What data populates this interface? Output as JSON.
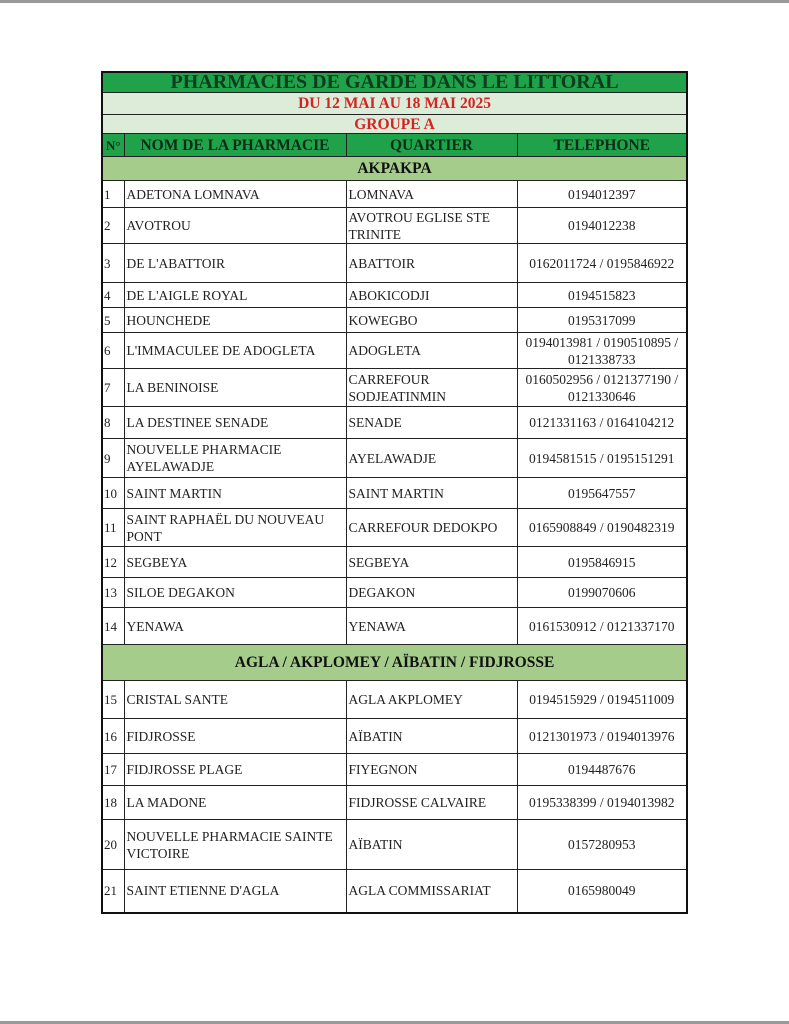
{
  "title": "PHARMACIES DE GARDE DANS LE LITTORAL",
  "period": "DU 12 MAI AU 18 MAI 2025",
  "group": "GROUPE A",
  "headers": {
    "num": "N°",
    "name": "NOM DE LA PHARMACIE",
    "district": "QUARTIER",
    "phone": "TELEPHONE"
  },
  "colors": {
    "header_green": "#1fa24a",
    "section_green": "#a5cc8a",
    "subtitle_red": "#d32424",
    "subtitle_bg": "#dcecd9"
  },
  "sections": [
    {
      "name": "AKPAKPA",
      "rows": [
        {
          "num": "1",
          "name": "ADETONA LOMNAVA",
          "district": "LOMNAVA",
          "phone": "0194012397"
        },
        {
          "num": "2",
          "name": "AVOTROU",
          "district": "AVOTROU EGLISE STE TRINITE",
          "phone": "0194012238"
        },
        {
          "num": "3",
          "name": "DE L'ABATTOIR",
          "district": "ABATTOIR",
          "phone": "0162011724 / 0195846922"
        },
        {
          "num": "4",
          "name": "DE L'AIGLE ROYAL",
          "district": "ABOKICODJI",
          "phone": "0194515823"
        },
        {
          "num": "5",
          "name": "HOUNCHEDE",
          "district": "KOWEGBO",
          "phone": "0195317099"
        },
        {
          "num": "6",
          "name": "L'IMMACULEE DE ADOGLETA",
          "district": "ADOGLETA",
          "phone": "0194013981 / 0190510895 / 0121338733"
        },
        {
          "num": "7",
          "name": "LA BENINOISE",
          "district": "CARREFOUR SODJEATINMIN",
          "phone": "0160502956 / 0121377190 / 0121330646"
        },
        {
          "num": "8",
          "name": "LA DESTINEE SENADE",
          "district": "SENADE",
          "phone": "0121331163 / 0164104212"
        },
        {
          "num": "9",
          "name": "NOUVELLE PHARMACIE AYELAWADJE",
          "district": "AYELAWADJE",
          "phone": "0194581515 / 0195151291"
        },
        {
          "num": "10",
          "name": "SAINT MARTIN",
          "district": "SAINT MARTIN",
          "phone": "0195647557"
        },
        {
          "num": "11",
          "name": "SAINT RAPHAËL DU NOUVEAU PONT",
          "district": "CARREFOUR DEDOKPO",
          "phone": "0165908849 / 0190482319"
        },
        {
          "num": "12",
          "name": "SEGBEYA",
          "district": "SEGBEYA",
          "phone": "0195846915"
        },
        {
          "num": "13",
          "name": "SILOE DEGAKON",
          "district": "DEGAKON",
          "phone": "0199070606"
        },
        {
          "num": "14",
          "name": "YENAWA",
          "district": "YENAWA",
          "phone": "0161530912 / 0121337170"
        }
      ]
    },
    {
      "name": "AGLA / AKPLOMEY / AÏBATIN / FIDJROSSE",
      "rows": [
        {
          "num": "15",
          "name": "CRISTAL SANTE",
          "district": "AGLA AKPLOMEY",
          "phone": "0194515929 / 0194511009"
        },
        {
          "num": "16",
          "name": "FIDJROSSE",
          "district": "AÏBATIN",
          "phone": "0121301973 / 0194013976"
        },
        {
          "num": "17",
          "name": "FIDJROSSE PLAGE",
          "district": "FIYEGNON",
          "phone": "0194487676"
        },
        {
          "num": "18",
          "name": "LA MADONE",
          "district": "FIDJROSSE CALVAIRE",
          "phone": "0195338399 / 0194013982"
        },
        {
          "num": "20",
          "name": "NOUVELLE PHARMACIE SAINTE VICTOIRE",
          "district": "AÏBATIN",
          "phone": "0157280953"
        },
        {
          "num": "21",
          "name": "SAINT ETIENNE D'AGLA",
          "district": "AGLA COMMISSARIAT",
          "phone": "0165980049"
        }
      ]
    }
  ]
}
